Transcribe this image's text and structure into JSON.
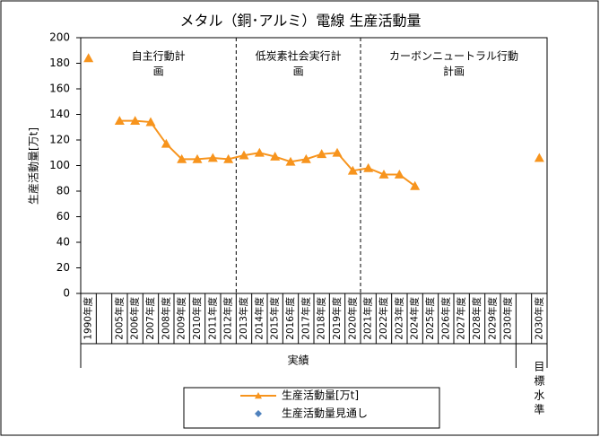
{
  "chart_data": {
    "type": "line",
    "title": "メタル（銅･アルミ）電線 生産活動量",
    "y_label": "生産活動量[万t]",
    "categories": [
      "1990年度",
      null,
      "2005年度",
      "2006年度",
      "2007年度",
      "2008年度",
      "2009年度",
      "2010年度",
      "2011年度",
      "2012年度",
      "2013年度",
      "2014年度",
      "2015年度",
      "2016年度",
      "2017年度",
      "2018年度",
      "2019年度",
      "2020年度",
      "2021年度",
      "2022年度",
      "2023年度",
      "2024年度",
      "2025年度",
      "2026年度",
      "2027年度",
      "2028年度",
      "2029年度",
      "2030年度",
      null,
      "2030年度"
    ],
    "series": [
      {
        "name": "生産活動量[万t]",
        "color": "#f7941d",
        "marker": "triangle",
        "values": [
          184,
          null,
          135,
          135,
          134,
          117,
          105,
          105,
          106,
          105,
          108,
          110,
          107,
          103,
          105,
          109,
          110,
          96,
          98,
          93,
          93,
          84,
          null,
          null,
          null,
          null,
          null,
          null,
          null,
          106
        ]
      },
      {
        "name": "生産活動量見通し",
        "color": "#4f81bd",
        "marker": "diamond",
        "values": [
          null,
          null,
          null,
          null,
          null,
          null,
          null,
          null,
          null,
          null,
          null,
          null,
          null,
          null,
          null,
          null,
          null,
          null,
          null,
          null,
          null,
          null,
          null,
          null,
          null,
          null,
          null,
          null,
          null,
          null
        ]
      }
    ],
    "annotations": [
      [
        "自主行動計",
        "画"
      ],
      [
        "低炭素社会実行計",
        "画"
      ],
      [
        "カーボンニュートラル行動",
        "計画"
      ]
    ],
    "groups": [
      "実績",
      "目標水準"
    ],
    "ylim": [
      0,
      200
    ],
    "yticks": [
      0,
      20,
      40,
      60,
      80,
      100,
      120,
      140,
      160,
      180,
      200
    ],
    "grid": false
  }
}
